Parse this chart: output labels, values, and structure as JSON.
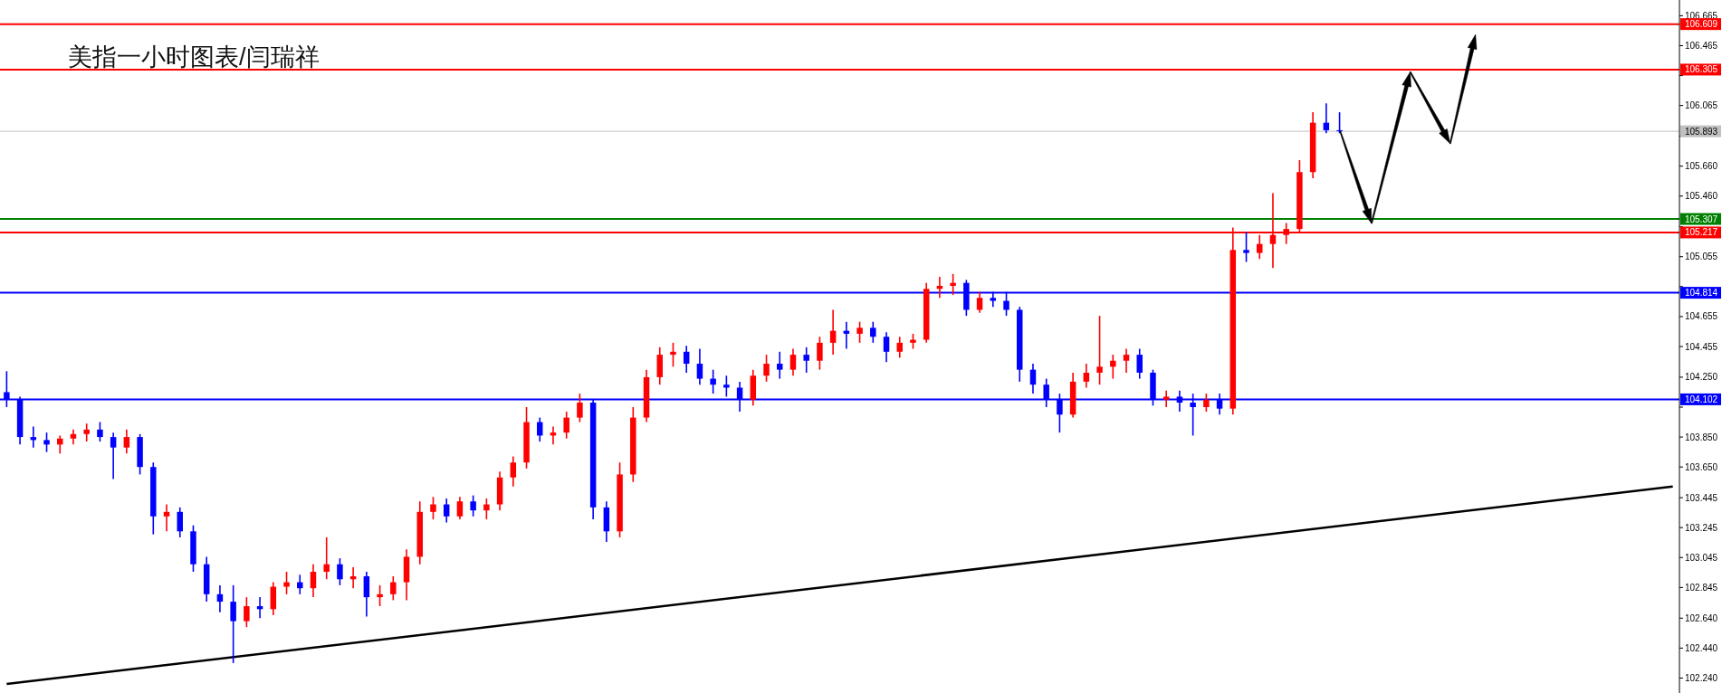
{
  "chart_data": {
    "type": "candlestick",
    "title": "美指一小时图表/闫瑞祥",
    "categories": [
      null,
      null,
      null,
      null,
      null,
      null,
      null,
      null,
      null,
      null,
      null,
      null,
      null,
      null,
      null,
      null,
      null,
      null,
      null,
      null,
      null,
      null,
      null,
      null,
      null,
      null,
      null,
      null,
      null,
      null,
      null,
      null,
      null,
      null,
      null,
      null,
      null,
      null,
      null,
      null,
      null,
      null,
      null,
      null,
      null,
      null,
      null,
      null,
      null,
      null,
      null,
      null,
      null,
      null,
      null,
      null,
      null,
      null,
      null,
      null,
      null,
      null,
      null,
      null,
      null,
      null,
      null,
      null,
      null,
      null,
      null,
      null,
      null,
      null,
      null,
      null,
      null,
      null,
      null,
      null,
      null,
      null,
      null,
      null,
      null,
      null,
      null,
      null,
      null,
      null,
      null,
      null,
      null,
      null,
      null,
      null,
      null,
      null,
      null,
      null,
      null,
      null,
      null,
      null,
      null,
      null,
      null,
      null,
      null,
      null,
      null,
      null,
      null,
      null,
      null,
      null,
      null,
      null,
      null,
      null,
      null,
      null,
      null,
      null,
      null,
      null
    ],
    "ohlc": [
      [
        104.15,
        104.29,
        104.05,
        104.1
      ],
      [
        104.1,
        104.12,
        103.8,
        103.85
      ],
      [
        103.85,
        103.92,
        103.78,
        103.83
      ],
      [
        103.83,
        103.88,
        103.75,
        103.8
      ],
      [
        103.8,
        103.86,
        103.74,
        103.84
      ],
      [
        103.84,
        103.9,
        103.8,
        103.87
      ],
      [
        103.87,
        103.94,
        103.82,
        103.9
      ],
      [
        103.9,
        103.95,
        103.82,
        103.85
      ],
      [
        103.85,
        103.88,
        103.57,
        103.78
      ],
      [
        103.78,
        103.9,
        103.74,
        103.85
      ],
      [
        103.85,
        103.87,
        103.6,
        103.65
      ],
      [
        103.65,
        103.68,
        103.2,
        103.32
      ],
      [
        103.32,
        103.4,
        103.22,
        103.35
      ],
      [
        103.35,
        103.38,
        103.18,
        103.22
      ],
      [
        103.22,
        103.26,
        102.95,
        103.0
      ],
      [
        103.0,
        103.05,
        102.75,
        102.8
      ],
      [
        102.8,
        102.86,
        102.68,
        102.75
      ],
      [
        102.75,
        102.86,
        102.34,
        102.62
      ],
      [
        102.62,
        102.78,
        102.58,
        102.72
      ],
      [
        102.72,
        102.78,
        102.64,
        102.7
      ],
      [
        102.7,
        102.88,
        102.66,
        102.85
      ],
      [
        102.85,
        102.95,
        102.8,
        102.88
      ],
      [
        102.88,
        102.93,
        102.8,
        102.84
      ],
      [
        102.84,
        103.0,
        102.78,
        102.95
      ],
      [
        102.95,
        103.18,
        102.9,
        103.0
      ],
      [
        103.0,
        103.04,
        102.86,
        102.9
      ],
      [
        102.9,
        102.98,
        102.84,
        102.92
      ],
      [
        102.92,
        102.95,
        102.65,
        102.78
      ],
      [
        102.78,
        102.86,
        102.72,
        102.8
      ],
      [
        102.8,
        102.92,
        102.76,
        102.88
      ],
      [
        102.88,
        103.1,
        102.76,
        103.05
      ],
      [
        103.05,
        103.42,
        103.0,
        103.35
      ],
      [
        103.35,
        103.45,
        103.3,
        103.4
      ],
      [
        103.4,
        103.44,
        103.28,
        103.32
      ],
      [
        103.32,
        103.45,
        103.3,
        103.42
      ],
      [
        103.42,
        103.46,
        103.32,
        103.36
      ],
      [
        103.36,
        103.44,
        103.3,
        103.4
      ],
      [
        103.4,
        103.62,
        103.36,
        103.58
      ],
      [
        103.58,
        103.72,
        103.52,
        103.68
      ],
      [
        103.68,
        104.05,
        103.64,
        103.95
      ],
      [
        103.95,
        103.98,
        103.82,
        103.86
      ],
      [
        103.86,
        103.92,
        103.8,
        103.88
      ],
      [
        103.88,
        104.02,
        103.84,
        103.98
      ],
      [
        103.98,
        104.14,
        103.95,
        104.08
      ],
      [
        104.08,
        104.1,
        103.3,
        103.38
      ],
      [
        103.38,
        103.42,
        103.15,
        103.22
      ],
      [
        103.22,
        103.68,
        103.18,
        103.6
      ],
      [
        103.6,
        104.05,
        103.55,
        103.98
      ],
      [
        103.98,
        104.3,
        103.95,
        104.25
      ],
      [
        104.25,
        104.45,
        104.2,
        104.4
      ],
      [
        104.4,
        104.48,
        104.32,
        104.42
      ],
      [
        104.42,
        104.46,
        104.28,
        104.34
      ],
      [
        104.34,
        104.44,
        104.2,
        104.24
      ],
      [
        104.24,
        104.3,
        104.14,
        104.2
      ],
      [
        104.2,
        104.26,
        104.12,
        104.18
      ],
      [
        104.18,
        104.22,
        104.02,
        104.1
      ],
      [
        104.1,
        104.3,
        104.06,
        104.26
      ],
      [
        104.26,
        104.4,
        104.22,
        104.34
      ],
      [
        104.34,
        104.42,
        104.24,
        104.3
      ],
      [
        104.3,
        104.44,
        104.26,
        104.4
      ],
      [
        104.4,
        104.45,
        104.28,
        104.36
      ],
      [
        104.36,
        104.52,
        104.3,
        104.48
      ],
      [
        104.48,
        104.7,
        104.4,
        104.56
      ],
      [
        104.56,
        104.62,
        104.44,
        104.54
      ],
      [
        104.54,
        104.62,
        104.48,
        104.58
      ],
      [
        104.58,
        104.62,
        104.48,
        104.52
      ],
      [
        104.52,
        104.55,
        104.35,
        104.42
      ],
      [
        104.42,
        104.52,
        104.38,
        104.48
      ],
      [
        104.48,
        104.54,
        104.44,
        104.5
      ],
      [
        104.5,
        104.88,
        104.48,
        104.84
      ],
      [
        104.84,
        104.92,
        104.78,
        104.86
      ],
      [
        104.86,
        104.94,
        104.8,
        104.88
      ],
      [
        104.88,
        104.9,
        104.66,
        104.7
      ],
      [
        104.7,
        104.82,
        104.68,
        104.78
      ],
      [
        104.78,
        104.82,
        104.72,
        104.76
      ],
      [
        104.76,
        104.82,
        104.66,
        104.7
      ],
      [
        104.7,
        104.72,
        104.22,
        104.3
      ],
      [
        104.3,
        104.34,
        104.14,
        104.2
      ],
      [
        104.2,
        104.24,
        104.05,
        104.1
      ],
      [
        104.1,
        104.14,
        103.88,
        104.0
      ],
      [
        104.0,
        104.28,
        103.98,
        104.22
      ],
      [
        104.22,
        104.34,
        104.18,
        104.28
      ],
      [
        104.28,
        104.66,
        104.2,
        104.32
      ],
      [
        104.32,
        104.4,
        104.24,
        104.36
      ],
      [
        104.36,
        104.44,
        104.28,
        104.4
      ],
      [
        104.4,
        104.44,
        104.24,
        104.28
      ],
      [
        104.28,
        104.3,
        104.06,
        104.1
      ],
      [
        104.1,
        104.16,
        104.05,
        104.12
      ],
      [
        104.12,
        104.16,
        104.02,
        104.08
      ],
      [
        104.08,
        104.14,
        103.86,
        104.05
      ],
      [
        104.05,
        104.14,
        104.02,
        104.1
      ],
      [
        104.1,
        104.14,
        104.0,
        104.04
      ],
      [
        104.04,
        105.25,
        104.0,
        105.1
      ],
      [
        105.1,
        105.22,
        105.02,
        105.08
      ],
      [
        105.08,
        105.2,
        105.04,
        105.14
      ],
      [
        105.14,
        105.48,
        104.98,
        105.2
      ],
      [
        105.2,
        105.28,
        105.14,
        105.24
      ],
      [
        105.24,
        105.7,
        105.22,
        105.62
      ],
      [
        105.62,
        106.02,
        105.58,
        105.95
      ],
      [
        105.95,
        106.08,
        105.88,
        105.9
      ],
      [
        105.9,
        106.02,
        105.88,
        105.893
      ],
      null,
      null,
      null,
      null,
      null,
      null,
      null,
      null,
      null,
      null,
      null,
      null,
      null,
      null,
      null,
      null,
      null,
      null,
      null,
      null,
      null,
      null,
      null,
      null,
      null
    ],
    "colors": [
      "#0000ff",
      "#0000ff",
      "#0000ff",
      "#0000ff",
      "#ff0000",
      "#ff0000",
      "#ff0000",
      "#0000ff",
      "#0000ff",
      "#ff0000",
      "#0000ff",
      "#0000ff",
      "#ff0000",
      "#0000ff",
      "#0000ff",
      "#0000ff",
      "#0000ff",
      "#0000ff",
      "#ff0000",
      "#0000ff",
      "#ff0000",
      "#ff0000",
      "#0000ff",
      "#ff0000",
      "#ff0000",
      "#0000ff",
      "#ff0000",
      "#0000ff",
      "#ff0000",
      "#ff0000",
      "#ff0000",
      "#ff0000",
      "#ff0000",
      "#0000ff",
      "#ff0000",
      "#0000ff",
      "#ff0000",
      "#ff0000",
      "#ff0000",
      "#ff0000",
      "#0000ff",
      "#ff0000",
      "#ff0000",
      "#ff0000",
      "#0000ff",
      "#0000ff",
      "#ff0000",
      "#ff0000",
      "#ff0000",
      "#ff0000",
      "#ff0000",
      "#0000ff",
      "#0000ff",
      "#0000ff",
      "#0000ff",
      "#0000ff",
      "#ff0000",
      "#ff0000",
      "#0000ff",
      "#ff0000",
      "#0000ff",
      "#ff0000",
      "#ff0000",
      "#0000ff",
      "#ff0000",
      "#0000ff",
      "#0000ff",
      "#ff0000",
      "#ff0000",
      "#ff0000",
      "#ff0000",
      "#ff0000",
      "#0000ff",
      "#ff0000",
      "#0000ff",
      "#0000ff",
      "#0000ff",
      "#0000ff",
      "#0000ff",
      "#0000ff",
      "#ff0000",
      "#ff0000",
      "#ff0000",
      "#ff0000",
      "#ff0000",
      "#0000ff",
      "#0000ff",
      "#ff0000",
      "#0000ff",
      "#0000ff",
      "#ff0000",
      "#0000ff",
      "#ff0000",
      "#0000ff",
      "#ff0000",
      "#ff0000",
      "#ff0000",
      "#ff0000",
      "#ff0000",
      "#0000ff",
      "#0000ff",
      null,
      null,
      null,
      null,
      null,
      null,
      null,
      null,
      null,
      null,
      null,
      null,
      null,
      null,
      null,
      null,
      null,
      null,
      null,
      null,
      null,
      null,
      null,
      null,
      null
    ],
    "series": [
      {
        "type": "line",
        "values": [
          102.2,
          null,
          null,
          null,
          null,
          null,
          null,
          null,
          null,
          null,
          null,
          null,
          null,
          null,
          null,
          null,
          null,
          null,
          null,
          null,
          null,
          null,
          null,
          null,
          null,
          null,
          null,
          null,
          null,
          null,
          null,
          null,
          null,
          null,
          null,
          null,
          null,
          null,
          null,
          null,
          null,
          null,
          null,
          null,
          null,
          null,
          null,
          null,
          null,
          null,
          null,
          null,
          null,
          null,
          null,
          null,
          null,
          null,
          null,
          null,
          null,
          null,
          null,
          null,
          null,
          null,
          null,
          null,
          null,
          null,
          null,
          null,
          null,
          null,
          null,
          null,
          null,
          null,
          null,
          null,
          null,
          null,
          null,
          null,
          null,
          null,
          null,
          null,
          null,
          null,
          null,
          null,
          null,
          null,
          null,
          null,
          null,
          null,
          null,
          null,
          null,
          null,
          null,
          null,
          null,
          null,
          null,
          null,
          null,
          null,
          null,
          null,
          null,
          null,
          null,
          null,
          null,
          null,
          null,
          null,
          null,
          null,
          null,
          null,
          null,
          103.52
        ],
        "color": "#000000"
      }
    ],
    "ylim": [
      102.14,
      106.77
    ],
    "yticks": [
      106.665,
      106.465,
      {
        "value": 106.265,
        "label": null
      },
      106.065,
      {
        "value": 105.86,
        "label": null
      },
      {
        "value": 105.66,
        "label": "105.660"
      },
      {
        "value": 105.46,
        "label": "105.460"
      },
      {
        "value": 105.255,
        "label": null
      },
      105.055,
      {
        "value": 104.855,
        "label": null
      },
      104.655,
      104.455,
      {
        "value": 104.25,
        "label": "104.250"
      },
      {
        "value": 104.05,
        "label": null
      },
      {
        "value": 103.85,
        "label": "103.850"
      },
      {
        "value": 103.65,
        "label": "103.650"
      },
      103.445,
      103.245,
      103.045,
      102.845,
      {
        "value": 102.64,
        "label": "102.640"
      },
      {
        "value": 102.44,
        "label": "102.440"
      },
      {
        "value": 102.24,
        "label": "102.240"
      }
    ],
    "ref_lines": [
      {
        "axis": "y",
        "value": 106.609,
        "label": "106.609",
        "color": "#ff0000"
      },
      {
        "axis": "y",
        "value": 106.305,
        "label": "106.305",
        "color": "#ff0000"
      },
      {
        "axis": "y",
        "value": 105.893,
        "label": "105.893",
        "color": "#c0c0c0"
      },
      {
        "axis": "y",
        "value": 105.307,
        "label": "105.307",
        "color": "#008000"
      },
      {
        "axis": "y",
        "value": 105.217,
        "label": "105.217",
        "color": "#ff0000"
      },
      {
        "axis": "y",
        "value": 104.814,
        "label": "104.814",
        "color": "#0000ff"
      },
      {
        "axis": "y",
        "value": 104.102,
        "label": "104.102",
        "color": "#0000ff"
      }
    ],
    "tick_labels": "y"
  }
}
